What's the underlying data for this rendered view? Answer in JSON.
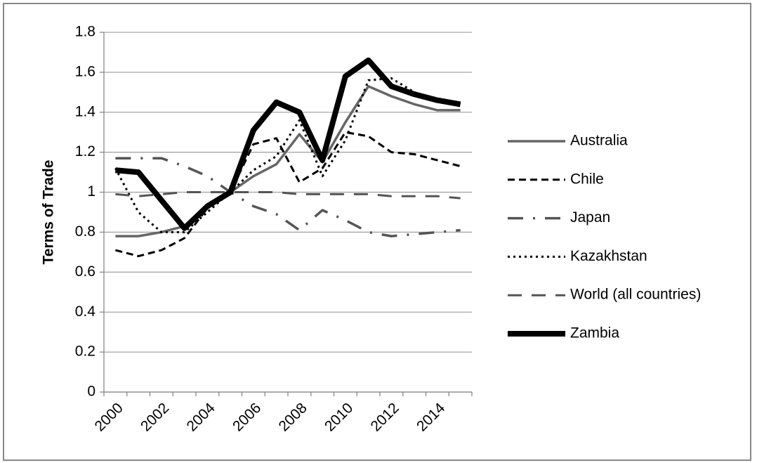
{
  "chart_data": {
    "type": "line",
    "y_label": "Terms of Trade",
    "categories": [
      "2000",
      null,
      "2002",
      null,
      "2004",
      null,
      "2006",
      null,
      "2008",
      null,
      "2010",
      null,
      "2012",
      null,
      "2014",
      null
    ],
    "ylim": [
      0,
      1.8
    ],
    "yticks": [
      0,
      0.2,
      0.4,
      0.6,
      0.8,
      1,
      1.2,
      1.4,
      1.6,
      1.8
    ],
    "grid": true,
    "legend": "right",
    "series": [
      {
        "name": "Australia",
        "color": "#666666",
        "style": "solid",
        "values": [
          0.78,
          0.78,
          0.8,
          0.83,
          0.92,
          1.0,
          1.08,
          1.14,
          1.29,
          1.15,
          1.35,
          1.53,
          1.48,
          1.44,
          1.41,
          1.41
        ]
      },
      {
        "name": "Chile",
        "color": "#000000",
        "style": "dash",
        "values": [
          0.71,
          0.68,
          0.71,
          0.77,
          0.92,
          1.0,
          1.24,
          1.27,
          1.05,
          1.12,
          1.3,
          1.28,
          1.2,
          1.19,
          1.16,
          1.13
        ]
      },
      {
        "name": "Japan",
        "color": "#555555",
        "style": "longdashdot",
        "values": [
          1.17,
          1.17,
          1.17,
          1.13,
          1.08,
          1.0,
          0.93,
          0.89,
          0.81,
          0.91,
          0.86,
          0.8,
          0.78,
          0.79,
          0.8,
          0.81
        ]
      },
      {
        "name": "Kazakhstan",
        "color": "#000000",
        "style": "dot",
        "values": [
          1.12,
          0.9,
          0.8,
          0.8,
          0.9,
          1.0,
          1.11,
          1.18,
          1.36,
          1.08,
          1.26,
          1.56,
          1.57,
          1.5,
          1.46,
          1.43
        ]
      },
      {
        "name": "World (all countries)",
        "color": "#555555",
        "style": "longdash",
        "values": [
          0.99,
          0.98,
          0.99,
          1.0,
          1.0,
          1.0,
          1.0,
          1.0,
          0.99,
          0.99,
          0.99,
          0.99,
          0.98,
          0.98,
          0.98,
          0.97
        ]
      },
      {
        "name": "Zambia",
        "color": "#000000",
        "style": "thick",
        "values": [
          1.11,
          1.1,
          0.96,
          0.82,
          0.93,
          1.0,
          1.31,
          1.45,
          1.4,
          1.16,
          1.58,
          1.66,
          1.53,
          1.49,
          1.46,
          1.44
        ]
      }
    ]
  }
}
